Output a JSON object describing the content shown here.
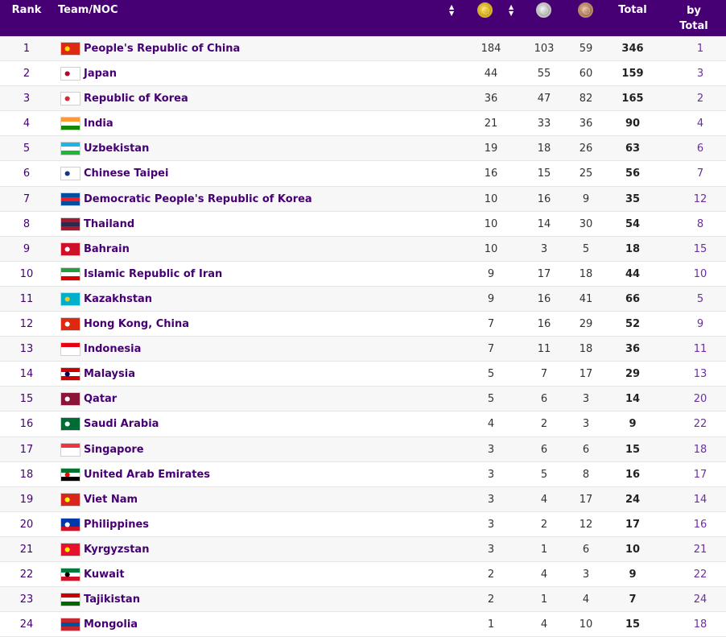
{
  "colors": {
    "header_bg": "#460073",
    "team_text": "#460073",
    "rank_text": "#6b2fa0"
  },
  "header": {
    "rank": "Rank",
    "team": "Team/NOC",
    "total": "Total",
    "by_total": "by Total",
    "gold_icon": "gold-medal-icon",
    "silver_icon": "silver-medal-icon",
    "bronze_icon": "bronze-medal-icon"
  },
  "rows": [
    {
      "rank": "1",
      "team": "People's Republic of China",
      "gold": "184",
      "silver": "103",
      "bronze": "59",
      "total": "346",
      "by_total": "1",
      "flag": [
        "#de2910",
        "#de2910",
        "#de2910"
      ],
      "mark": "#ffde00"
    },
    {
      "rank": "2",
      "team": "Japan",
      "gold": "44",
      "silver": "55",
      "bronze": "60",
      "total": "159",
      "by_total": "3",
      "flag": [
        "#ffffff",
        "#ffffff",
        "#ffffff"
      ],
      "mark": "#bc002d"
    },
    {
      "rank": "3",
      "team": "Republic of Korea",
      "gold": "36",
      "silver": "47",
      "bronze": "82",
      "total": "165",
      "by_total": "2",
      "flag": [
        "#ffffff",
        "#ffffff",
        "#ffffff"
      ],
      "mark": "#cd2e3a"
    },
    {
      "rank": "4",
      "team": "India",
      "gold": "21",
      "silver": "33",
      "bronze": "36",
      "total": "90",
      "by_total": "4",
      "flag": [
        "#ff9933",
        "#ffffff",
        "#138808"
      ],
      "mark": ""
    },
    {
      "rank": "5",
      "team": "Uzbekistan",
      "gold": "19",
      "silver": "18",
      "bronze": "26",
      "total": "63",
      "by_total": "6",
      "flag": [
        "#1eb5e5",
        "#ffffff",
        "#1eb53a"
      ],
      "mark": ""
    },
    {
      "rank": "6",
      "team": "Chinese Taipei",
      "gold": "16",
      "silver": "15",
      "bronze": "25",
      "total": "56",
      "by_total": "7",
      "flag": [
        "#ffffff",
        "#ffffff",
        "#ffffff"
      ],
      "mark": "#0f3a8c"
    },
    {
      "rank": "7",
      "team": "Democratic People's Republic of Korea",
      "gold": "10",
      "silver": "16",
      "bronze": "9",
      "total": "35",
      "by_total": "12",
      "flag": [
        "#024fa2",
        "#ed1c27",
        "#024fa2"
      ],
      "mark": ""
    },
    {
      "rank": "8",
      "team": "Thailand",
      "gold": "10",
      "silver": "14",
      "bronze": "30",
      "total": "54",
      "by_total": "8",
      "flag": [
        "#a51931",
        "#2d2a4a",
        "#a51931"
      ],
      "mark": ""
    },
    {
      "rank": "9",
      "team": "Bahrain",
      "gold": "10",
      "silver": "3",
      "bronze": "5",
      "total": "18",
      "by_total": "15",
      "flag": [
        "#ce1126",
        "#ce1126",
        "#ce1126"
      ],
      "mark": "#ffffff"
    },
    {
      "rank": "10",
      "team": "Islamic Republic of Iran",
      "gold": "9",
      "silver": "17",
      "bronze": "18",
      "total": "44",
      "by_total": "10",
      "flag": [
        "#239f40",
        "#ffffff",
        "#da0000"
      ],
      "mark": ""
    },
    {
      "rank": "11",
      "team": "Kazakhstan",
      "gold": "9",
      "silver": "16",
      "bronze": "41",
      "total": "66",
      "by_total": "5",
      "flag": [
        "#00afca",
        "#00afca",
        "#00afca"
      ],
      "mark": "#fec50c"
    },
    {
      "rank": "12",
      "team": "Hong Kong, China",
      "gold": "7",
      "silver": "16",
      "bronze": "29",
      "total": "52",
      "by_total": "9",
      "flag": [
        "#de2910",
        "#de2910",
        "#de2910"
      ],
      "mark": "#ffffff"
    },
    {
      "rank": "13",
      "team": "Indonesia",
      "gold": "7",
      "silver": "11",
      "bronze": "18",
      "total": "36",
      "by_total": "11",
      "flag": [
        "#e70011",
        "#ffffff",
        "#ffffff"
      ],
      "mark": ""
    },
    {
      "rank": "14",
      "team": "Malaysia",
      "gold": "5",
      "silver": "7",
      "bronze": "17",
      "total": "29",
      "by_total": "13",
      "flag": [
        "#cc0001",
        "#ffffff",
        "#cc0001"
      ],
      "mark": "#010066"
    },
    {
      "rank": "15",
      "team": "Qatar",
      "gold": "5",
      "silver": "6",
      "bronze": "3",
      "total": "14",
      "by_total": "20",
      "flag": [
        "#8a1538",
        "#8a1538",
        "#8a1538"
      ],
      "mark": "#ffffff"
    },
    {
      "rank": "16",
      "team": "Saudi Arabia",
      "gold": "4",
      "silver": "2",
      "bronze": "3",
      "total": "9",
      "by_total": "22",
      "flag": [
        "#006c35",
        "#006c35",
        "#006c35"
      ],
      "mark": "#ffffff"
    },
    {
      "rank": "17",
      "team": "Singapore",
      "gold": "3",
      "silver": "6",
      "bronze": "6",
      "total": "15",
      "by_total": "18",
      "flag": [
        "#ef3340",
        "#ffffff",
        "#ffffff"
      ],
      "mark": ""
    },
    {
      "rank": "18",
      "team": "United Arab Emirates",
      "gold": "3",
      "silver": "5",
      "bronze": "8",
      "total": "16",
      "by_total": "17",
      "flag": [
        "#00732f",
        "#ffffff",
        "#000000"
      ],
      "mark": "#ff0000"
    },
    {
      "rank": "19",
      "team": "Viet Nam",
      "gold": "3",
      "silver": "4",
      "bronze": "17",
      "total": "24",
      "by_total": "14",
      "flag": [
        "#da251d",
        "#da251d",
        "#da251d"
      ],
      "mark": "#ffff00"
    },
    {
      "rank": "20",
      "team": "Philippines",
      "gold": "3",
      "silver": "2",
      "bronze": "12",
      "total": "17",
      "by_total": "16",
      "flag": [
        "#0038a8",
        "#0038a8",
        "#ce1126"
      ],
      "mark": "#ffffff"
    },
    {
      "rank": "21",
      "team": "Kyrgyzstan",
      "gold": "3",
      "silver": "1",
      "bronze": "6",
      "total": "10",
      "by_total": "21",
      "flag": [
        "#e8112d",
        "#e8112d",
        "#e8112d"
      ],
      "mark": "#ffef00"
    },
    {
      "rank": "22",
      "team": "Kuwait",
      "gold": "2",
      "silver": "4",
      "bronze": "3",
      "total": "9",
      "by_total": "22",
      "flag": [
        "#007a3d",
        "#ffffff",
        "#ce1126"
      ],
      "mark": "#000000"
    },
    {
      "rank": "23",
      "team": "Tajikistan",
      "gold": "2",
      "silver": "1",
      "bronze": "4",
      "total": "7",
      "by_total": "24",
      "flag": [
        "#cc0000",
        "#ffffff",
        "#006600"
      ],
      "mark": ""
    },
    {
      "rank": "24",
      "team": "Mongolia",
      "gold": "1",
      "silver": "4",
      "bronze": "10",
      "total": "15",
      "by_total": "18",
      "flag": [
        "#c4272f",
        "#015197",
        "#c4272f"
      ],
      "mark": ""
    }
  ]
}
